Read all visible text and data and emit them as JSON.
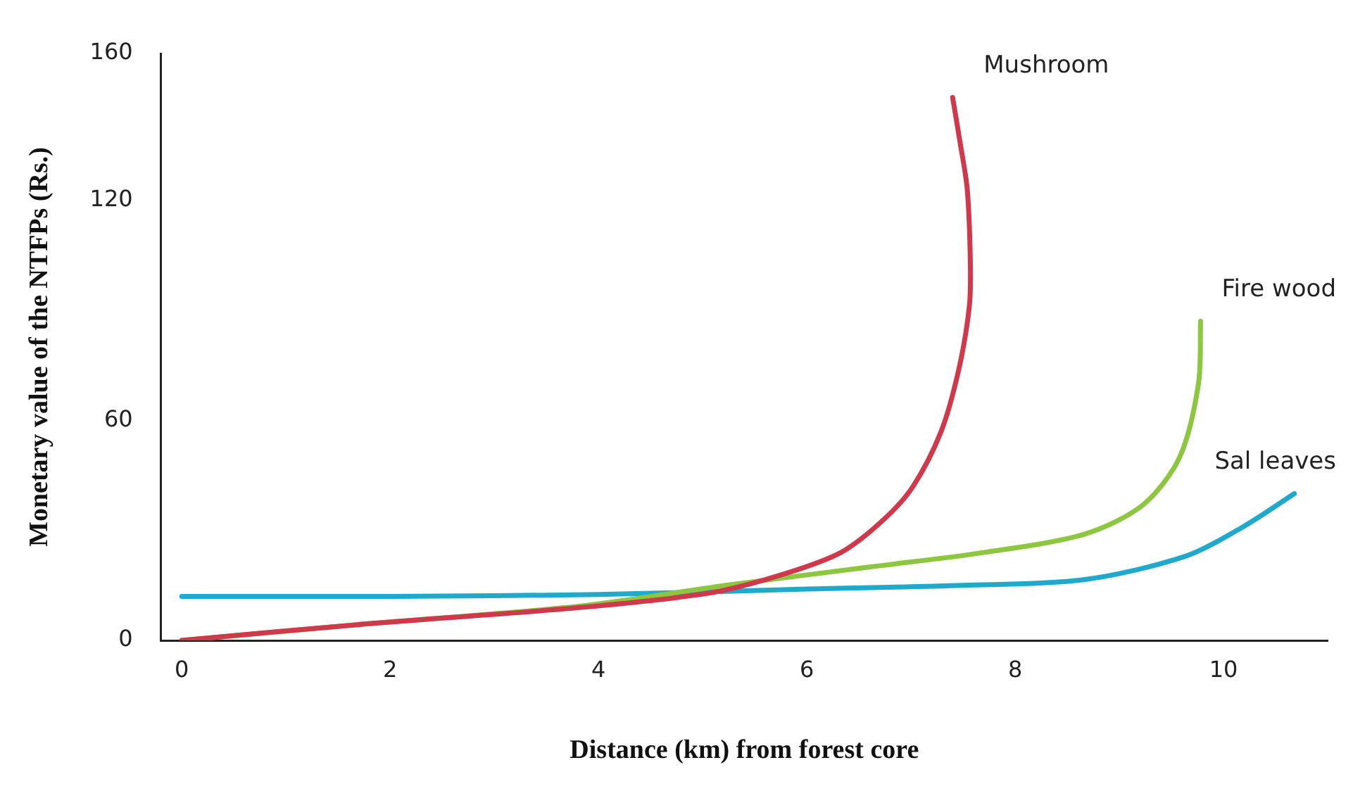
{
  "chart_data": {
    "type": "line",
    "xlabel": "Distance (km) from forest core",
    "ylabel": "Monetary value of the NTFPs (Rs.)",
    "xlim": [
      -0.2,
      11
    ],
    "ylim": [
      0,
      160
    ],
    "xticks": [
      0,
      2,
      4,
      6,
      8,
      10
    ],
    "yticks": [
      0,
      60,
      120,
      160
    ],
    "grid": false,
    "legend": false,
    "marker": "none",
    "series": [
      {
        "name": "Mushroom",
        "color": "#d0394c",
        "x": [
          0,
          1.77,
          3.84,
          5.08,
          5.77,
          6.33,
          6.74,
          7.02,
          7.29,
          7.46,
          7.56,
          7.57,
          7.54,
          7.47,
          7.4
        ],
        "values": [
          0,
          4.5,
          9,
          13,
          18,
          24,
          33,
          42,
          57,
          74,
          91,
          103,
          123,
          136,
          148
        ]
      },
      {
        "name": "Fire wood",
        "color": "#8dc63f",
        "x": [
          0,
          1.77,
          3.84,
          5.22,
          6.6,
          7.71,
          8.67,
          9.23,
          9.58,
          9.76,
          9.78
        ],
        "values": [
          0,
          4.5,
          9.4,
          15,
          20,
          24,
          29,
          37,
          50,
          70,
          87
        ]
      },
      {
        "name": "Sal leaves",
        "color": "#1fa9cc",
        "x": [
          0,
          2,
          4,
          6,
          7.5,
          8.67,
          9.64,
          10.19,
          10.68
        ],
        "values": [
          12,
          12,
          12.5,
          14,
          15,
          16.6,
          23,
          31,
          40
        ]
      }
    ]
  }
}
